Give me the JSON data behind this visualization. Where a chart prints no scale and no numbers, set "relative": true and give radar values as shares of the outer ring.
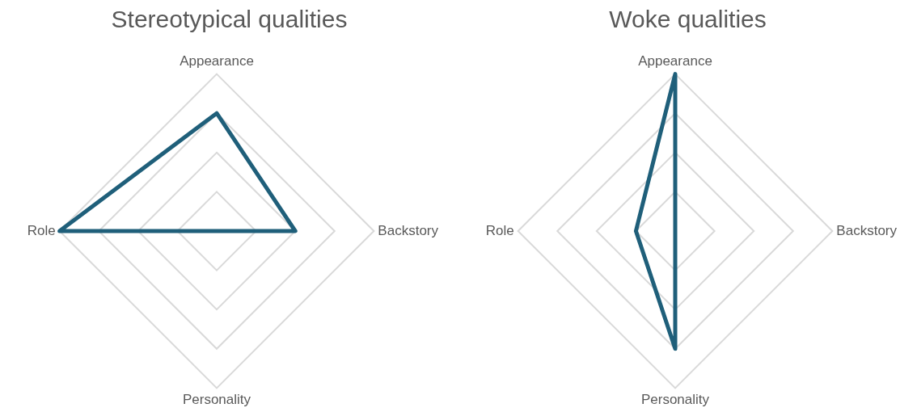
{
  "chart_data": [
    {
      "type": "radar",
      "title": "Stereotypical qualities",
      "categories": [
        "Appearance",
        "Backstory",
        "Personality",
        "Role"
      ],
      "relative": true,
      "series": [
        {
          "color": "#1f5f7a",
          "values": [
            0.75,
            0.5,
            0,
            1
          ]
        }
      ]
    },
    {
      "type": "radar",
      "title": "Woke qualities",
      "categories": [
        "Appearance",
        "Backstory",
        "Personality",
        "Role"
      ],
      "relative": true,
      "series": [
        {
          "color": "#1f5f7a",
          "values": [
            1,
            0,
            0.75,
            0.25
          ]
        }
      ]
    }
  ]
}
